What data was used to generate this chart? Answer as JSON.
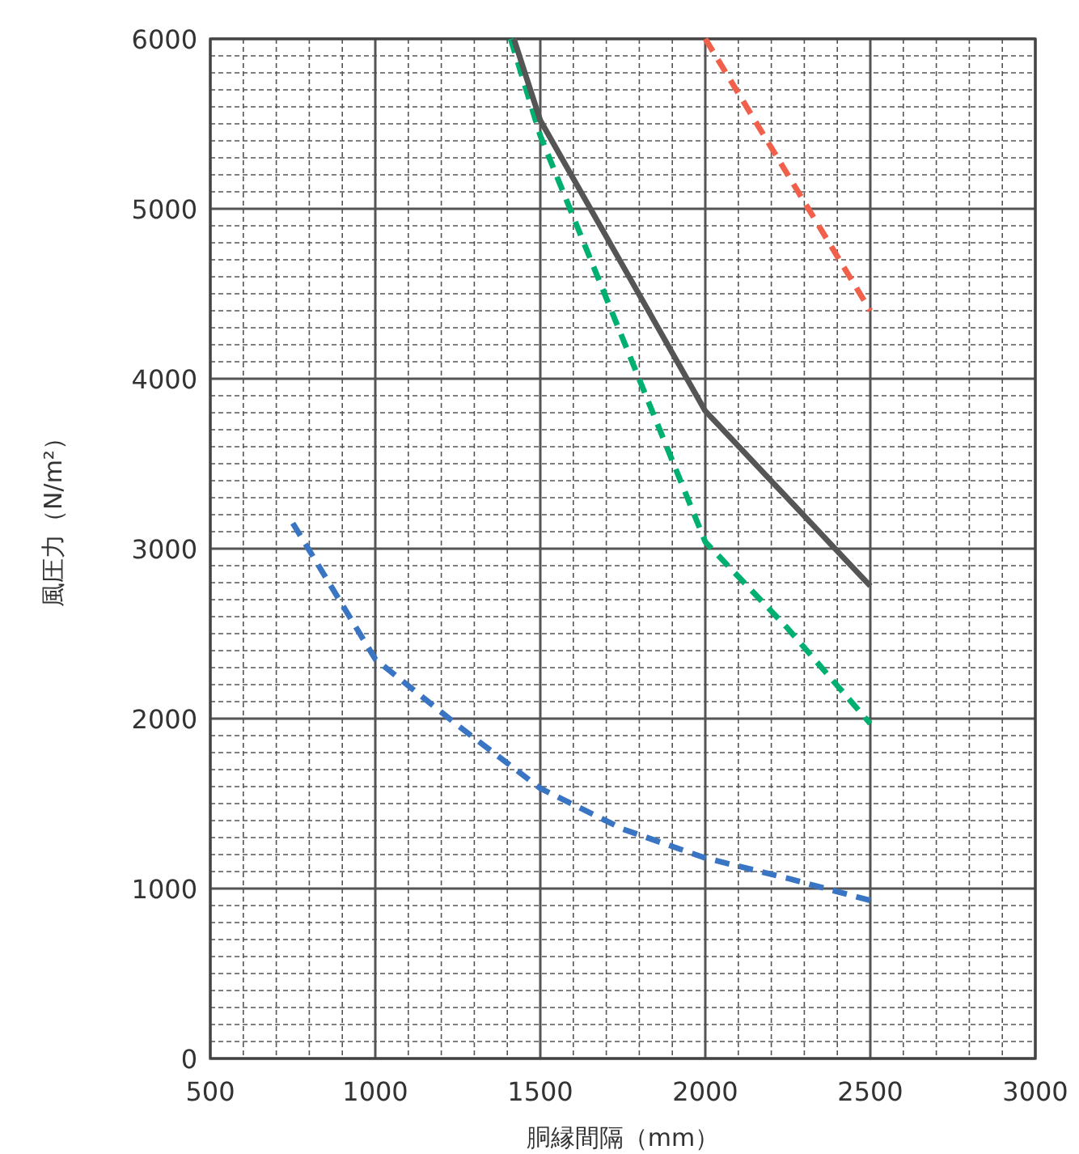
{
  "chart_data": {
    "type": "line",
    "xlabel": "胴縁間隔（mm）",
    "ylabel": "風圧力（N/m²）",
    "xlim": [
      500,
      3000
    ],
    "ylim": [
      0,
      6000
    ],
    "xticks": [
      500,
      1000,
      1500,
      2000,
      2500,
      3000
    ],
    "yticks": [
      0,
      1000,
      2000,
      3000,
      4000,
      5000,
      6000
    ],
    "grid": true,
    "series": [
      {
        "color": "#3a75c4",
        "line_style": "dashed",
        "x": [
          750,
          1000,
          1250,
          1500,
          1750,
          2000,
          2250,
          2500
        ],
        "values": [
          3150,
          2350,
          1960,
          1590,
          1350,
          1180,
          1060,
          930
        ]
      },
      {
        "color": "#00b070",
        "line_style": "dashed",
        "x": [
          1410,
          1500,
          2000,
          2250,
          2500
        ],
        "values": [
          6000,
          5430,
          3040,
          2530,
          1970
        ]
      },
      {
        "color": "#555555",
        "line_style": "solid",
        "x": [
          1420,
          1500,
          2000,
          2500
        ],
        "values": [
          6000,
          5520,
          3810,
          2780
        ]
      },
      {
        "color": "#f0604a",
        "line_style": "dashed",
        "x": [
          2000,
          2500
        ],
        "values": [
          6000,
          4400
        ]
      }
    ]
  }
}
